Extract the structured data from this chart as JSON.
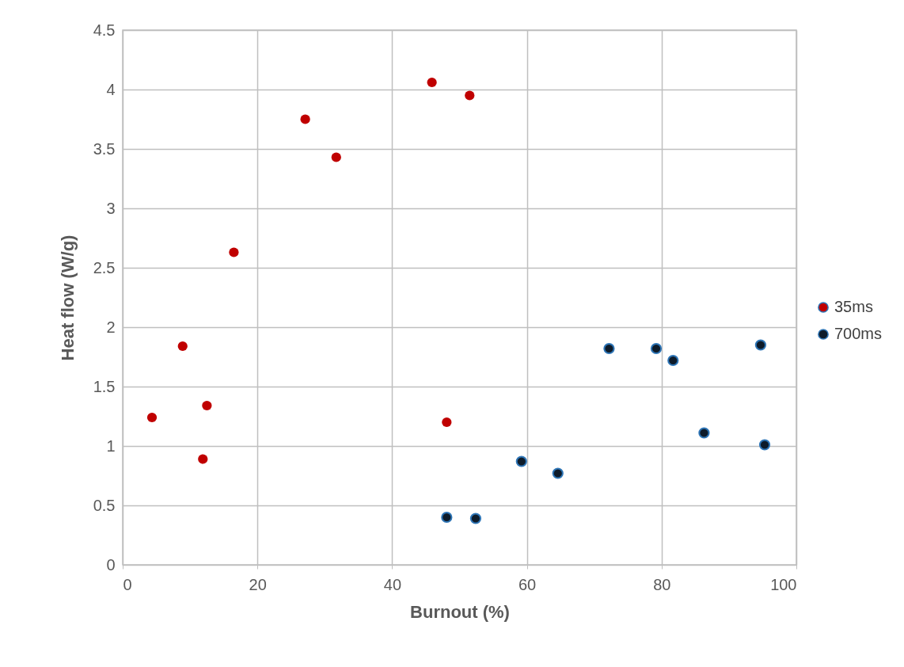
{
  "chart_data": {
    "type": "scatter",
    "xlabel": "Burnout (%)",
    "ylabel": "Heat flow (W/g)",
    "xlim": [
      0,
      100
    ],
    "xticks": [
      0,
      20,
      40,
      60,
      80,
      100
    ],
    "ylim": [
      0,
      4.5
    ],
    "yticks": [
      0,
      0.5,
      1,
      1.5,
      2,
      2.5,
      3,
      3.5,
      4,
      4.5
    ],
    "grid": true,
    "legend": "right",
    "marker": "circle",
    "series": [
      {
        "name": "35ms",
        "color": "#c00000",
        "x": [
          4.35,
          8.9,
          11.9,
          12.5,
          16.5,
          27.1,
          31.7,
          45.9,
          51.5,
          48.1
        ],
        "values": [
          1.24,
          1.84,
          0.89,
          1.34,
          2.63,
          3.75,
          3.43,
          4.06,
          3.95,
          1.2
        ]
      },
      {
        "name": "700ms",
        "color": "#0d1b2a",
        "x": [
          48.1,
          52.4,
          59.2,
          64.6,
          72.2,
          79.2,
          81.7,
          86.3,
          94.7,
          95.3
        ],
        "values": [
          0.4,
          0.39,
          0.87,
          0.77,
          1.82,
          1.82,
          1.72,
          1.11,
          1.85,
          1.01
        ]
      }
    ]
  }
}
